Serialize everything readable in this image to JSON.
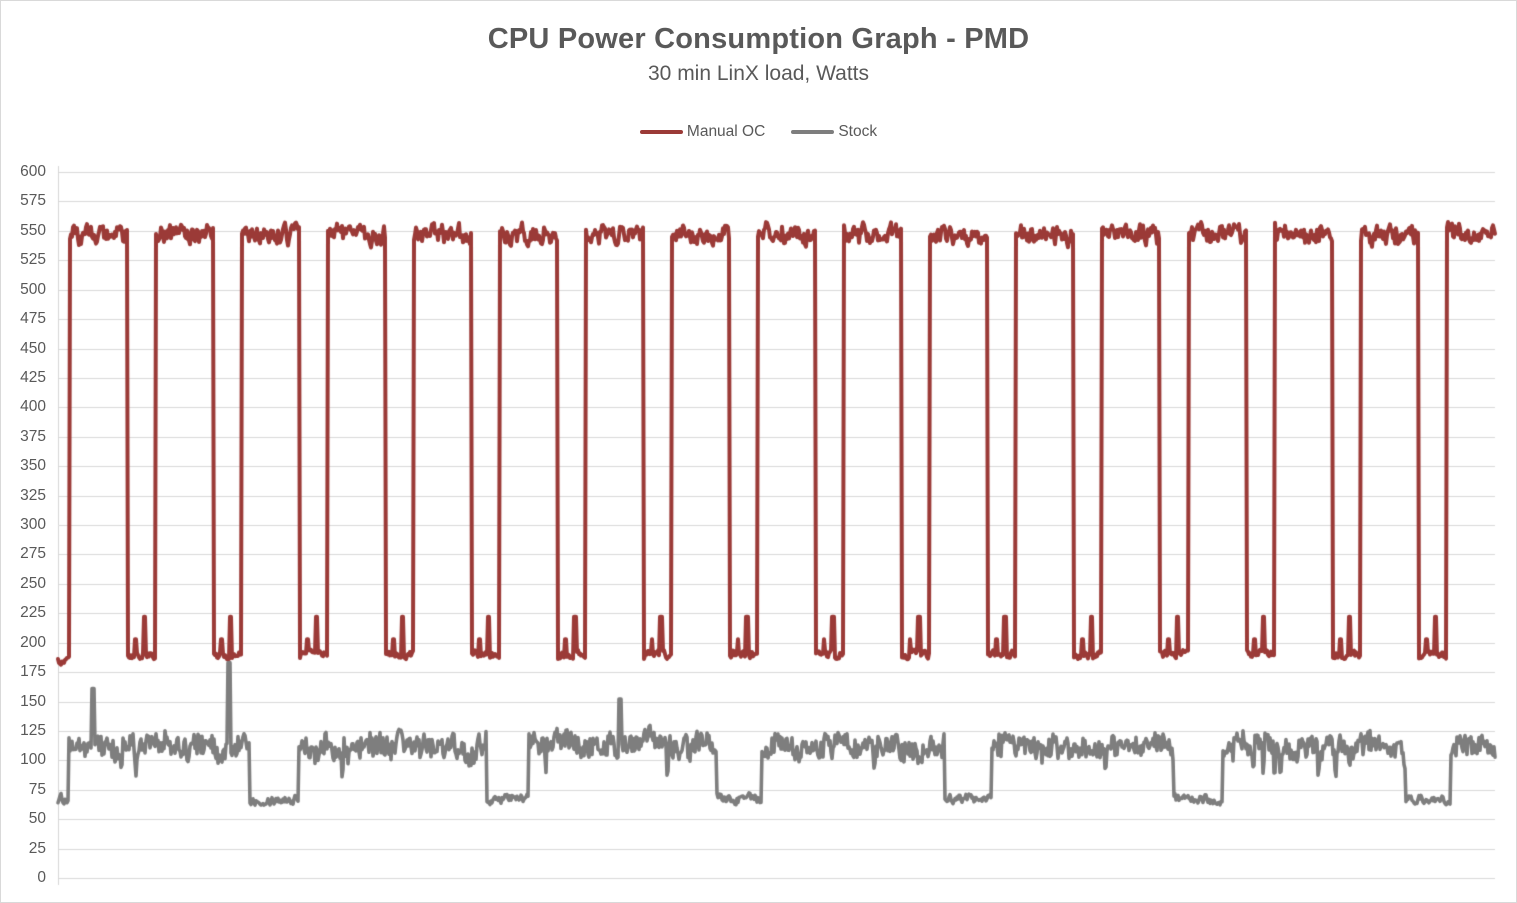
{
  "title": "CPU Power Consumption Graph - PMD",
  "subtitle": "30 min LinX load, Watts",
  "colors": {
    "manual_oc": "#9B3A37",
    "stock": "#7E7E7E",
    "text": "#595959",
    "gridline": "#D9D9D9",
    "axis_line": "#D6D6D6",
    "border": "#D9D9D9",
    "background": "#FFFFFF"
  },
  "chart_data": {
    "type": "line",
    "title": "CPU Power Consumption Graph - PMD",
    "subtitle": "30 min LinX load, Watts",
    "xlabel": "",
    "ylabel": "",
    "x_unit": "minutes",
    "x_range": [
      0,
      30
    ],
    "ylim": [
      0,
      600
    ],
    "ytick_step": 25,
    "yticks": [
      600,
      575,
      550,
      525,
      500,
      475,
      450,
      425,
      400,
      375,
      350,
      325,
      300,
      275,
      250,
      225,
      200,
      175,
      150,
      125,
      100,
      75,
      50,
      25,
      0
    ],
    "grid": "horizontal",
    "x_axis_labels_shown": false,
    "legend_position": "top",
    "series": [
      {
        "name": "Manual OC",
        "color": "#9B3A37",
        "pattern": {
          "type": "square_wave",
          "start_level": 185,
          "first_rise_min": 0.23,
          "period_min": 1.797,
          "high_duration_min": 1.211,
          "cycles": 17,
          "high_level": 547,
          "high_noise": 8,
          "low_level": 190,
          "low_noise": 4,
          "low_spike_level": 222,
          "low_spike_offset_frac": 0.62,
          "low_bump_level": 203,
          "low_bump_offset_frac": 0.3
        }
      },
      {
        "name": "Stock",
        "color": "#7E7E7E",
        "pattern": {
          "type": "noisy_band",
          "high_level": 112,
          "high_noise_range": [
            88,
            134
          ],
          "low_level": 67,
          "low_noise": 5,
          "low_intervals_min": [
            [
              0.0,
              0.21
            ],
            [
              3.99,
              5.03
            ],
            [
              8.94,
              9.83
            ],
            [
              13.74,
              14.68
            ],
            [
              18.5,
              19.48
            ],
            [
              23.28,
              24.32
            ],
            [
              28.14,
              29.08
            ]
          ],
          "spikes": [
            {
              "t_min": 0.73,
              "value": 161
            },
            {
              "t_min": 3.57,
              "value": 183
            },
            {
              "t_min": 11.73,
              "value": 152
            }
          ]
        }
      }
    ]
  }
}
